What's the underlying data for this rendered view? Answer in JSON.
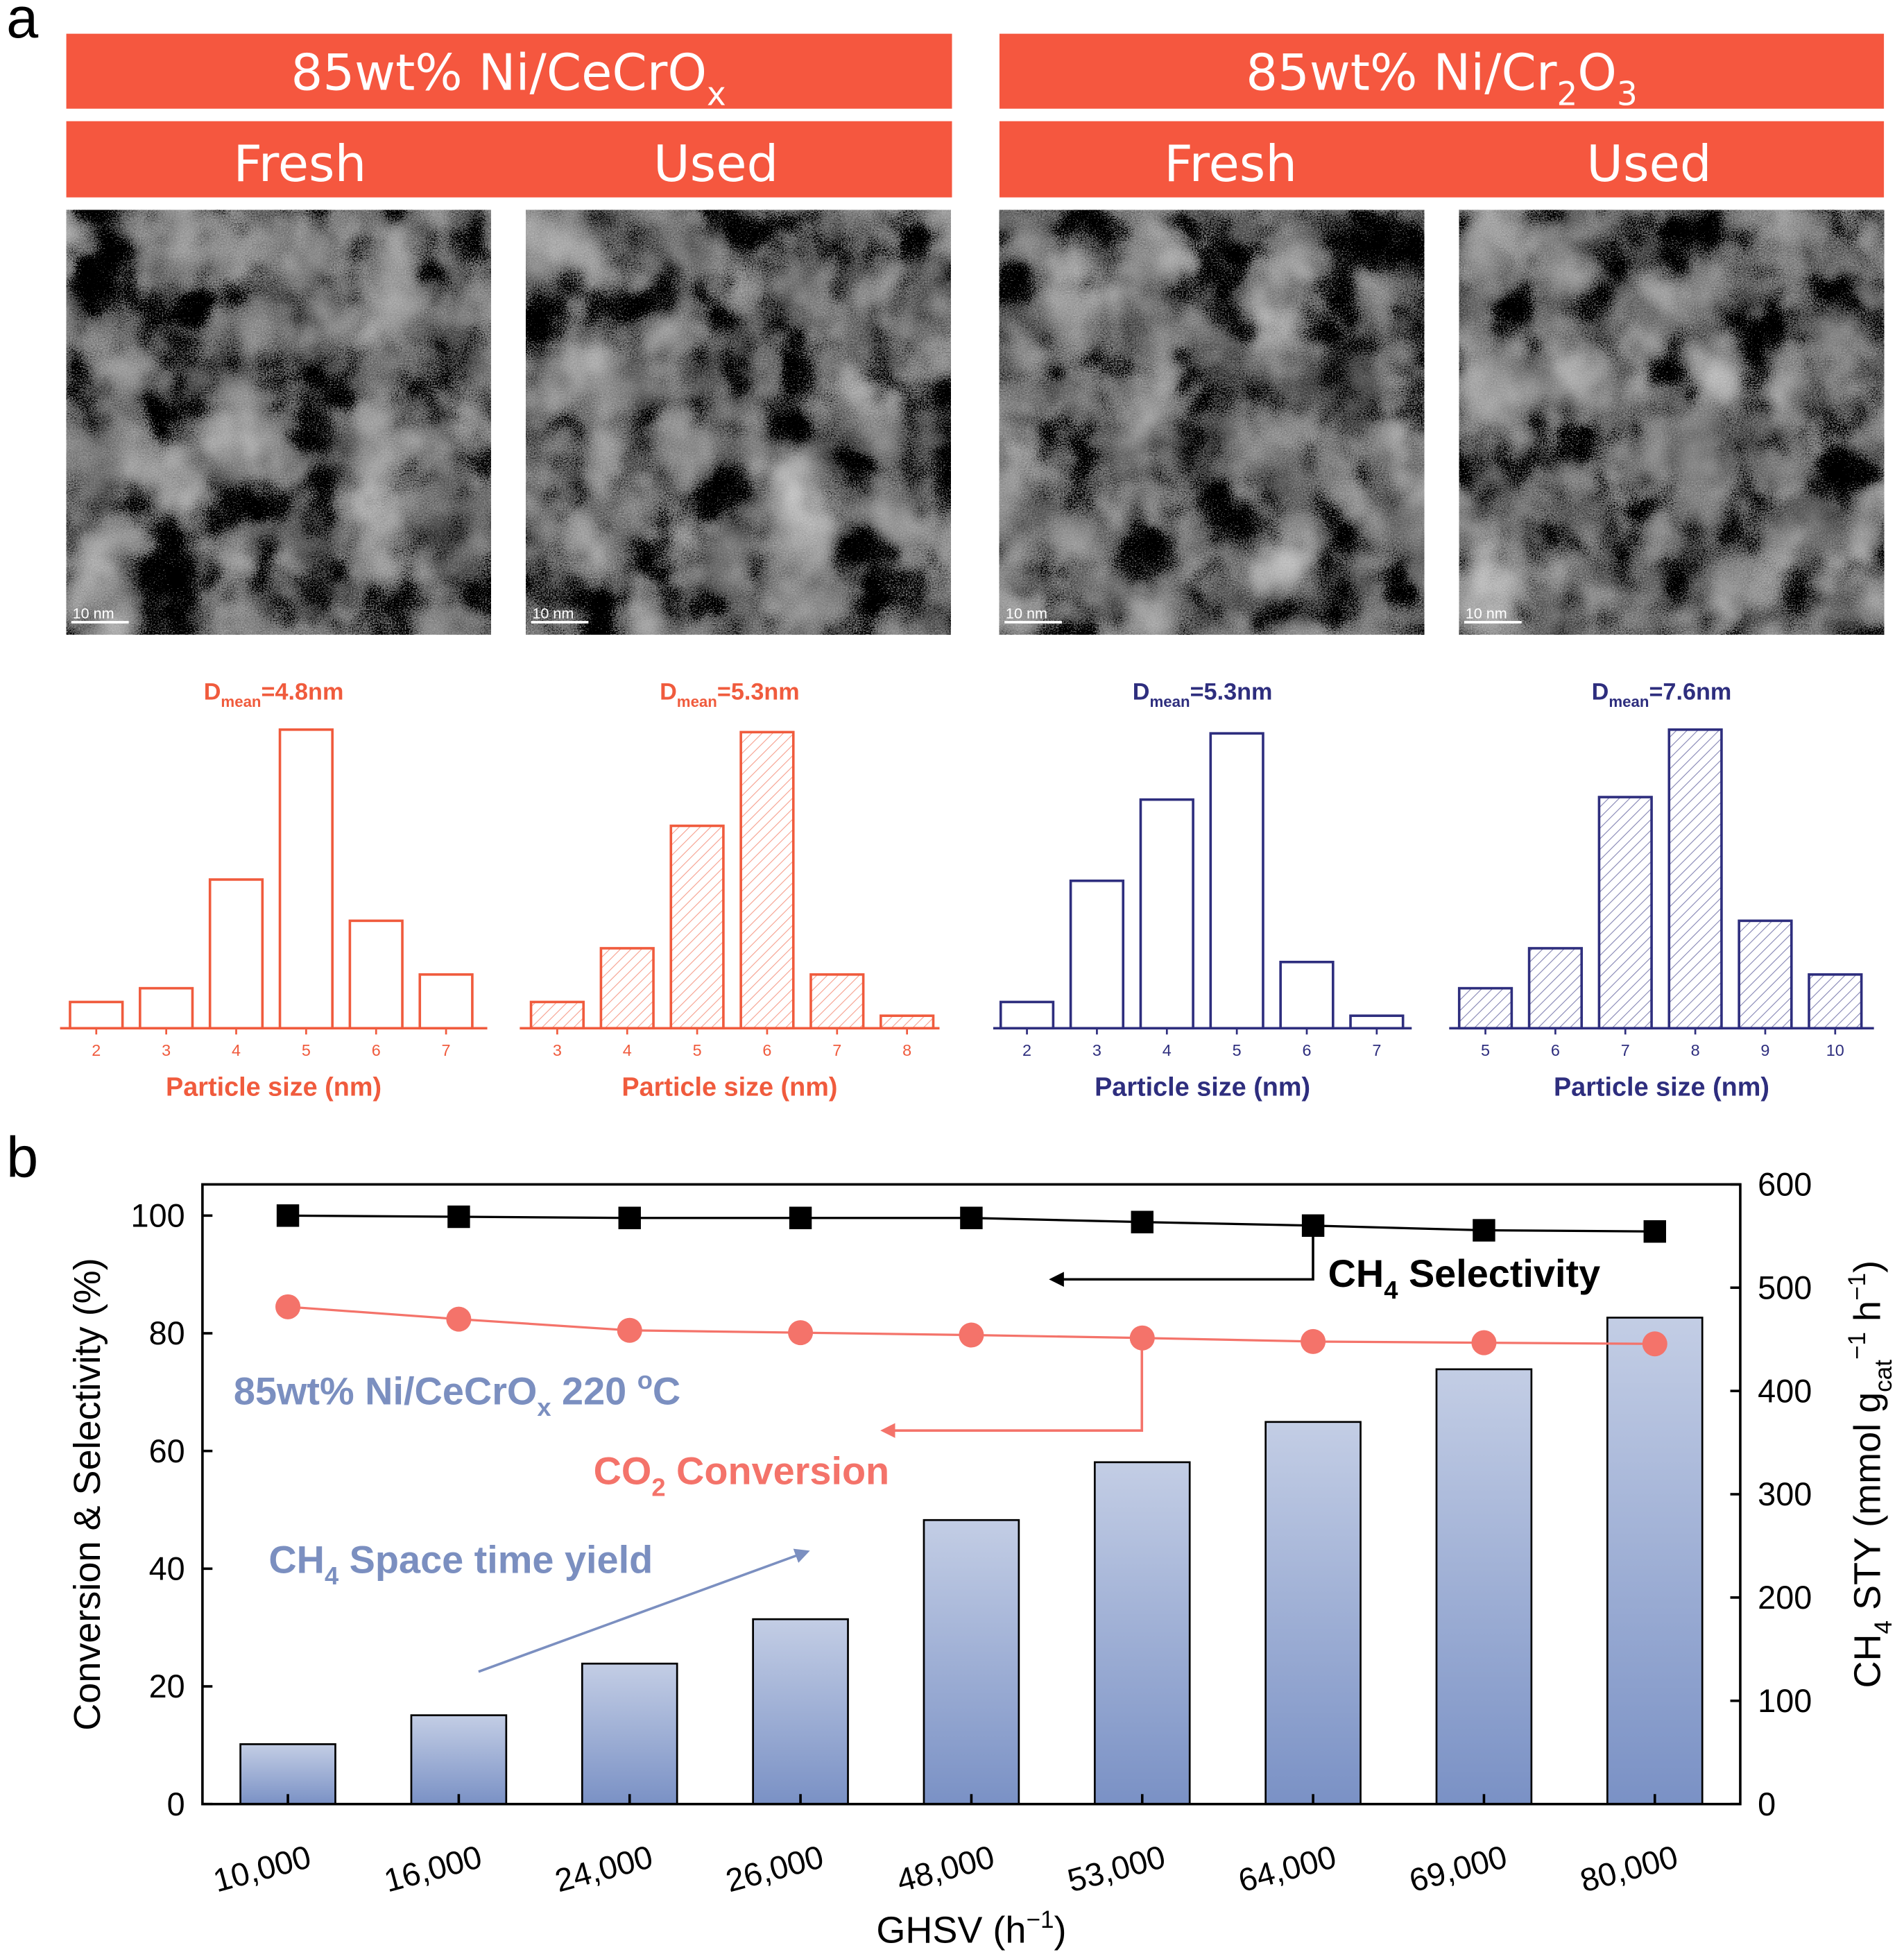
{
  "panel_labels": [
    "a",
    "b"
  ],
  "headers": {
    "groups": [
      [
        "85wt% Ni/CeCrO",
        {
          "sub": "x"
        }
      ],
      [
        "85wt% Ni/Cr",
        {
          "sub": "2"
        },
        "O",
        {
          "sub": "3"
        }
      ]
    ],
    "states": [
      "Fresh",
      "Used",
      "Fresh",
      "Used"
    ]
  },
  "images": {
    "scale_bars": [
      "10 nm",
      "10 nm",
      "10 nm",
      "10 nm"
    ]
  },
  "chart_data": [
    {
      "type": "bar",
      "title": [
        "D",
        {
          "sub": "mean"
        },
        "=4.8nm"
      ],
      "categories": [
        "2",
        "3",
        "4",
        "5",
        "6",
        "7"
      ],
      "values": [
        21,
        32,
        119,
        239,
        86,
        43
      ],
      "color": "#f05b3d",
      "hatch": false,
      "xlabel": "Particle size (nm)"
    },
    {
      "type": "bar",
      "title": [
        "D",
        {
          "sub": "mean"
        },
        "=5.3nm"
      ],
      "categories": [
        "3",
        "4",
        "5",
        "6",
        "7",
        "8"
      ],
      "values": [
        21,
        64,
        162,
        237,
        43,
        10
      ],
      "color": "#f05b3d",
      "hatch": true,
      "xlabel": "Particle size (nm)"
    },
    {
      "type": "bar",
      "title": [
        "D",
        {
          "sub": "mean"
        },
        "=5.3nm"
      ],
      "categories": [
        "2",
        "3",
        "4",
        "5",
        "6",
        "7"
      ],
      "values": [
        21,
        118,
        183,
        236,
        53,
        10
      ],
      "color": "#2e2e7e",
      "hatch": false,
      "xlabel": "Particle size (nm)"
    },
    {
      "type": "bar",
      "title": [
        "D",
        {
          "sub": "mean"
        },
        "=7.6nm"
      ],
      "categories": [
        "5",
        "6",
        "7",
        "8",
        "9",
        "10"
      ],
      "values": [
        32,
        64,
        185,
        239,
        86,
        43
      ],
      "color": "#2e2e7e",
      "hatch": true,
      "xlabel": "Particle size (nm)"
    },
    {
      "type": "combo",
      "categories": [
        "10,000",
        "16,000",
        "24,000",
        "26,000",
        "48,000",
        "53,000",
        "64,000",
        "69,000",
        "80,000"
      ],
      "xlabel": [
        "GHSV (h",
        {
          "sup": "−1"
        },
        ")"
      ],
      "ylabel": "Conversion & Selectivity (%)",
      "y2label": [
        "CH",
        {
          "sub": "4"
        },
        " STY (mmol g",
        {
          "sub": "cat"
        },
        {
          "sup": "−1"
        },
        " h",
        {
          "sup": "−1"
        },
        ")"
      ],
      "ylim": [
        0,
        105.3
      ],
      "yticks": [
        0,
        20,
        40,
        60,
        80,
        100
      ],
      "y2lim": [
        0,
        600
      ],
      "y2ticks": [
        0,
        100,
        200,
        300,
        400,
        500,
        600
      ],
      "series": [
        {
          "type": "bar",
          "axis": "y2",
          "color": "#7a91c5",
          "values": [
            58,
            86,
            136,
            179,
            275,
            331,
            370,
            421,
            471
          ]
        },
        {
          "type": "line",
          "marker": "square",
          "color": "#000000",
          "values": [
            100,
            99.8,
            99.6,
            99.6,
            99.6,
            98.9,
            98.3,
            97.5,
            97.3
          ]
        },
        {
          "type": "line",
          "marker": "circle",
          "color": "#f4736a",
          "values": [
            84.5,
            82.4,
            80.5,
            80.1,
            79.7,
            79.2,
            78.6,
            78.4,
            78.2
          ]
        }
      ],
      "annotations": [
        {
          "text": [
            "CH",
            {
              "sub": "4"
            },
            " Selectivity"
          ],
          "color": "#000000"
        },
        {
          "text": [
            "CO",
            {
              "sub": "2"
            },
            " Conversion"
          ],
          "color": "#f4736a"
        },
        {
          "text": [
            "85wt% Ni/CeCrO",
            {
              "sub": "x"
            },
            " 220 ",
            {
              "sup": "o"
            },
            "C"
          ],
          "color": "#7b8fc0"
        },
        {
          "text": [
            "CH",
            {
              "sub": "4"
            },
            " Space time yield"
          ],
          "color": "#7b8fc0"
        }
      ]
    }
  ]
}
